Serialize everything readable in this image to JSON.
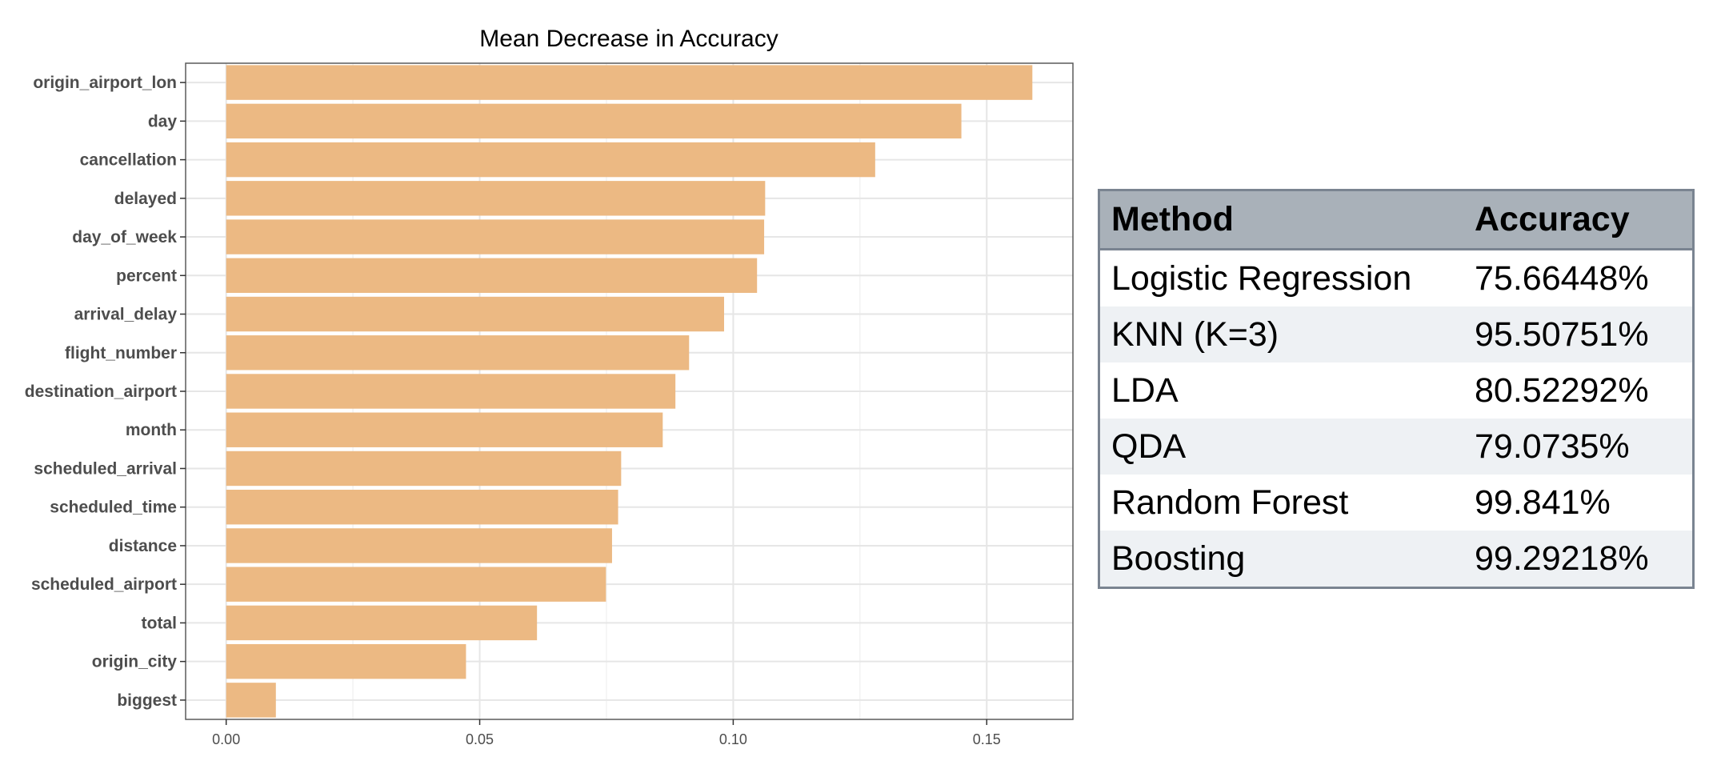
{
  "chart_data": {
    "type": "bar",
    "orientation": "horizontal",
    "title": "Mean Decrease in Accuracy",
    "xlabel": "",
    "ylabel": "",
    "xlim": [
      -0.008,
      0.167
    ],
    "xticks": [
      0.0,
      0.05,
      0.1,
      0.15
    ],
    "xtick_labels": [
      "0.00",
      "0.05",
      "0.10",
      "0.15"
    ],
    "grid": true,
    "bar_color": "#ecb983",
    "categories": [
      "origin_airport_lon",
      "day",
      "cancellation",
      "delayed",
      "day_of_week",
      "percent",
      "arrival_delay",
      "flight_number",
      "destination_airport",
      "month",
      "scheduled_arrival",
      "scheduled_time",
      "distance",
      "scheduled_airport",
      "total",
      "origin_city",
      "biggest"
    ],
    "values": [
      0.159,
      0.145,
      0.128,
      0.1063,
      0.1061,
      0.1047,
      0.0982,
      0.0913,
      0.0886,
      0.0861,
      0.0779,
      0.0773,
      0.0761,
      0.0749,
      0.0613,
      0.0473,
      0.0098
    ]
  },
  "results_table": {
    "headers": [
      "Method",
      "Accuracy"
    ],
    "rows": [
      {
        "method": "Logistic Regression",
        "accuracy": "75.66448%"
      },
      {
        "method": "KNN (K=3)",
        "accuracy": "95.50751%"
      },
      {
        "method": "LDA",
        "accuracy": "80.52292%"
      },
      {
        "method": "QDA",
        "accuracy": "79.0735%"
      },
      {
        "method": "Random Forest",
        "accuracy": "99.841%"
      },
      {
        "method": "Boosting",
        "accuracy": "99.29218%"
      }
    ]
  }
}
